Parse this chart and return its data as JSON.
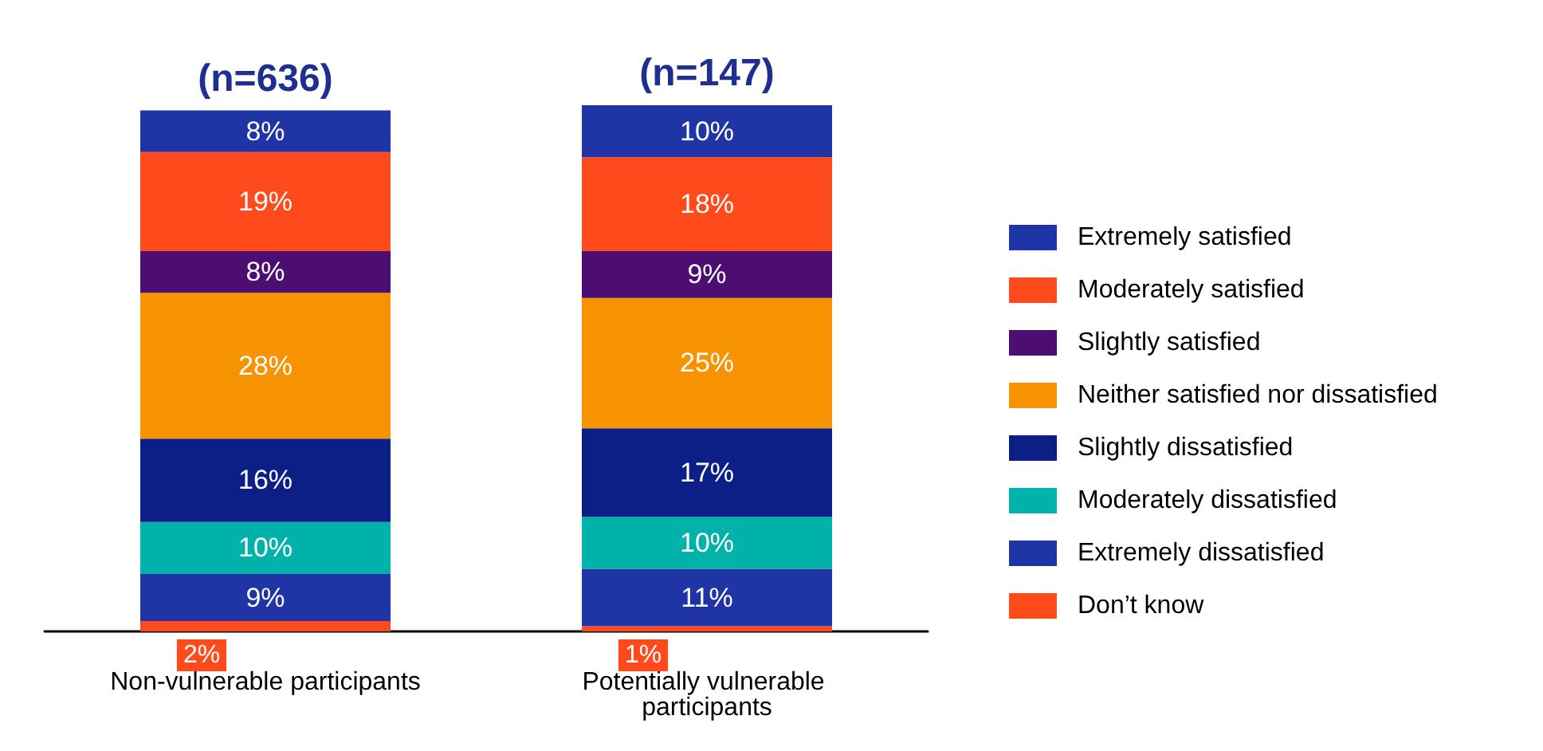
{
  "chart_data": {
    "type": "bar",
    "stacked": true,
    "legend": "right",
    "categories": [
      "Non-vulnerable participants",
      "Potentially vulnerable participants"
    ],
    "annotations": [
      "(n=636)",
      "(n=147)"
    ],
    "series": [
      {
        "name": "Don’t know",
        "color": "#ff4a1c",
        "values": [
          2,
          1
        ],
        "value_labels": [
          "2%",
          "1%"
        ]
      },
      {
        "name": "Extremely dissatisfied",
        "color": "#1f35a5",
        "values": [
          9,
          11
        ],
        "value_labels": [
          "9%",
          "11%"
        ]
      },
      {
        "name": "Moderately dissatisfied",
        "color": "#00b2aa",
        "values": [
          10,
          10
        ],
        "value_labels": [
          "10%",
          "10%"
        ]
      },
      {
        "name": "Slightly dissatisfied",
        "color": "#0c1f86",
        "values": [
          16,
          17
        ],
        "value_labels": [
          "16%",
          "17%"
        ]
      },
      {
        "name": "Neither satisfied nor dissatisfied",
        "color": "#f79200",
        "values": [
          28,
          25
        ],
        "value_labels": [
          "28%",
          "25%"
        ]
      },
      {
        "name": "Slightly satisfied",
        "color": "#4d0e72",
        "values": [
          8,
          9
        ],
        "value_labels": [
          "8%",
          "9%"
        ]
      },
      {
        "name": "Moderately satisfied",
        "color": "#ff4a1c",
        "values": [
          19,
          18
        ],
        "value_labels": [
          "19%",
          "18%"
        ]
      },
      {
        "name": "Extremely satisfied",
        "color": "#1f35a5",
        "values": [
          8,
          10
        ],
        "value_labels": [
          "8%",
          "10%"
        ]
      }
    ]
  }
}
